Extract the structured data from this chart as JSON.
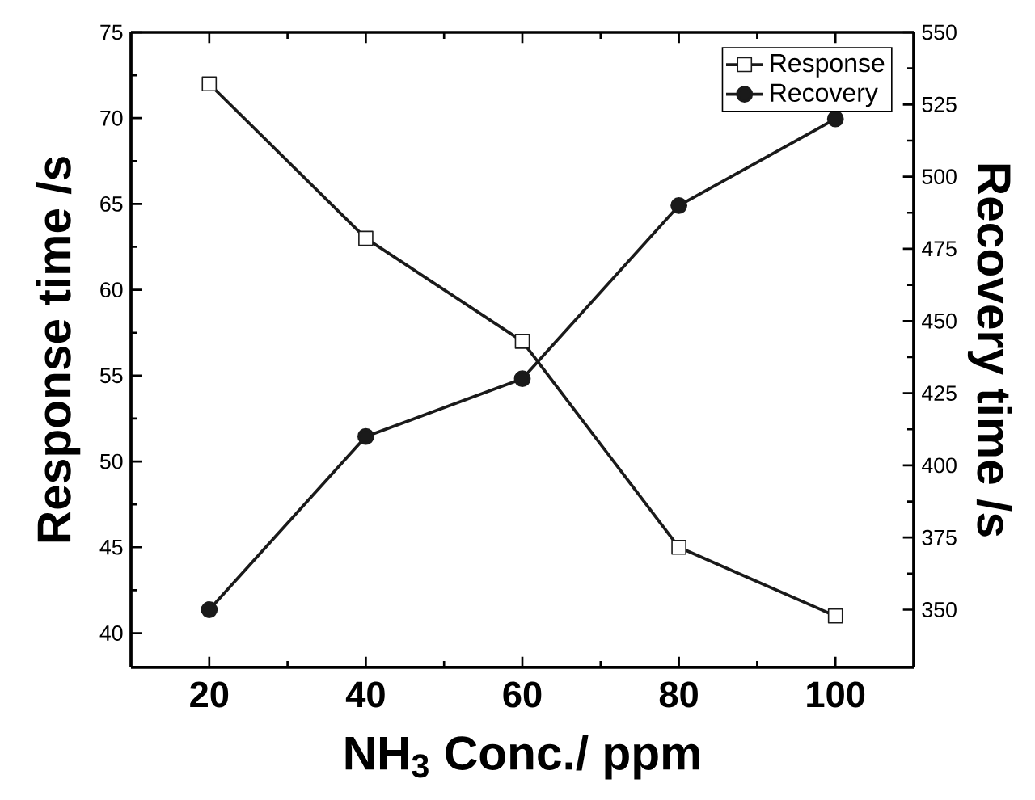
{
  "chart_data": {
    "type": "line",
    "xlabel": "NH$_{3}$ Conc./ ppm",
    "ylabel": "Response time /s",
    "y2label": "Recovery time /s",
    "x": [
      20,
      40,
      60,
      80,
      100
    ],
    "series": [
      {
        "name": "Response",
        "color": "#1a1a1a",
        "marker": "square",
        "values": [
          72,
          63,
          57,
          45,
          41
        ]
      },
      {
        "name": "Recovery",
        "color": "#1a1a1a",
        "marker": "circle",
        "axis": "y2",
        "values": [
          350,
          410,
          430,
          490,
          520
        ]
      }
    ],
    "xlim": [
      10,
      110
    ],
    "xticks": [
      20,
      40,
      60,
      80,
      100
    ],
    "ylim": [
      38,
      75
    ],
    "yticks": [
      40,
      45,
      50,
      55,
      60,
      65,
      70,
      75
    ],
    "y2lim": [
      330,
      550
    ],
    "y2ticks": [
      350,
      375,
      400,
      425,
      450,
      475,
      500,
      525,
      550
    ],
    "legend": "top right",
    "grid": false,
    "line_style": "solid"
  }
}
